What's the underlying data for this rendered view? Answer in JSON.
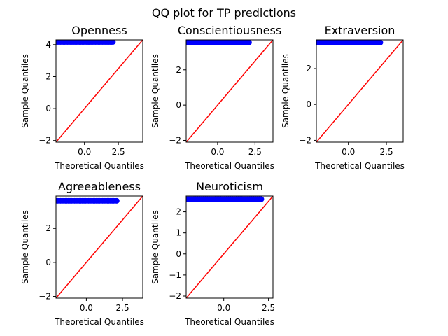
{
  "figure": {
    "suptitle": "QQ plot for TP predictions"
  },
  "colors": {
    "points": "#0000ff",
    "reference_line": "#ff0000",
    "axes": "#000000"
  },
  "chart_data": [
    {
      "type": "scatter",
      "title": "Openness",
      "xlabel": "Theoretical Quantiles",
      "ylabel": "Sample Quantiles",
      "xlim": [
        -2.1,
        4.3
      ],
      "ylim": [
        -2.1,
        4.3
      ],
      "xticks": [
        0.0,
        2.5
      ],
      "yticks": [
        -2,
        0,
        2,
        4
      ],
      "sample_value": 4.17,
      "theoretical_range": [
        -2.1,
        2.1
      ],
      "reference_line": "45-degree"
    },
    {
      "type": "scatter",
      "title": "Conscientiousness",
      "xlabel": "Theoretical Quantiles",
      "ylabel": "Sample Quantiles",
      "xlim": [
        -2.1,
        3.7
      ],
      "ylim": [
        -2.1,
        3.7
      ],
      "xticks": [
        0.0,
        2.5
      ],
      "yticks": [
        -2,
        0,
        2
      ],
      "sample_value": 3.55,
      "theoretical_range": [
        -2.1,
        2.1
      ],
      "reference_line": "45-degree"
    },
    {
      "type": "scatter",
      "title": "Extraversion",
      "xlabel": "Theoretical Quantiles",
      "ylabel": "Sample Quantiles",
      "xlim": [
        -2.1,
        3.6
      ],
      "ylim": [
        -2.1,
        3.6
      ],
      "xticks": [
        0.0,
        2.5
      ],
      "yticks": [
        -2,
        0,
        2
      ],
      "sample_value": 3.45,
      "theoretical_range": [
        -2.1,
        2.1
      ],
      "reference_line": "45-degree"
    },
    {
      "type": "scatter",
      "title": "Agreeableness",
      "xlabel": "Theoretical Quantiles",
      "ylabel": "Sample Quantiles",
      "xlim": [
        -2.1,
        3.9
      ],
      "ylim": [
        -2.1,
        3.9
      ],
      "xticks": [
        0.0,
        2.5
      ],
      "yticks": [
        -2,
        0,
        2
      ],
      "sample_value": 3.62,
      "theoretical_range": [
        -2.1,
        2.1
      ],
      "reference_line": "45-degree"
    },
    {
      "type": "scatter",
      "title": "Neuroticism",
      "xlabel": "Theoretical Quantiles",
      "ylabel": "Sample Quantiles",
      "xlim": [
        -2.1,
        2.75
      ],
      "ylim": [
        -2.1,
        2.75
      ],
      "xticks": [
        0.0,
        2.5
      ],
      "yticks": [
        -2,
        -1,
        0,
        1,
        2
      ],
      "sample_value": 2.6,
      "theoretical_range": [
        -2.1,
        2.1
      ],
      "reference_line": "45-degree"
    }
  ]
}
